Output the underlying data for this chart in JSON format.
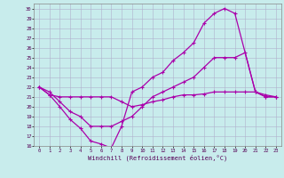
{
  "xlabel": "Windchill (Refroidissement éolien,°C)",
  "bg_color": "#c8ecec",
  "grid_color": "#b0b0cc",
  "line_color": "#aa00aa",
  "xlim": [
    -0.5,
    23.5
  ],
  "ylim": [
    16,
    30.5
  ],
  "yticks": [
    16,
    17,
    18,
    19,
    20,
    21,
    22,
    23,
    24,
    25,
    26,
    27,
    28,
    29,
    30
  ],
  "xticks": [
    0,
    1,
    2,
    3,
    4,
    5,
    6,
    7,
    8,
    9,
    10,
    11,
    12,
    13,
    14,
    15,
    16,
    17,
    18,
    19,
    20,
    21,
    22,
    23
  ],
  "line1_x": [
    0,
    1,
    2,
    3,
    4,
    5,
    6,
    7,
    8,
    9,
    10,
    11,
    12,
    13,
    14,
    15,
    16,
    17,
    18,
    19,
    21,
    22,
    23
  ],
  "line1_y": [
    22,
    21.2,
    20.0,
    18.7,
    17.8,
    16.5,
    16.2,
    15.8,
    18.0,
    21.5,
    22.0,
    23.0,
    23.5,
    24.7,
    25.5,
    26.5,
    28.5,
    29.5,
    30.0,
    29.5,
    21.5,
    21.0,
    21.0
  ],
  "line2_x": [
    0,
    1,
    2,
    3,
    4,
    5,
    6,
    7,
    8,
    9,
    10,
    11,
    12,
    13,
    14,
    15,
    16,
    17,
    18,
    19,
    20,
    21,
    22,
    23
  ],
  "line2_y": [
    22,
    21.5,
    20.5,
    19.5,
    19.0,
    18.0,
    18.0,
    18.0,
    18.5,
    19.0,
    20.0,
    21.0,
    21.5,
    22.0,
    22.5,
    23.0,
    24.0,
    25.0,
    25.0,
    25.0,
    25.5,
    21.5,
    21.0,
    21.0
  ],
  "line3_x": [
    0,
    1,
    2,
    3,
    4,
    5,
    6,
    7,
    8,
    9,
    10,
    11,
    12,
    13,
    14,
    15,
    16,
    17,
    18,
    19,
    20,
    21,
    22,
    23
  ],
  "line3_y": [
    22,
    21.2,
    21.0,
    21.0,
    21.0,
    21.0,
    21.0,
    21.0,
    20.5,
    20.0,
    20.2,
    20.5,
    20.7,
    21.0,
    21.2,
    21.2,
    21.3,
    21.5,
    21.5,
    21.5,
    21.5,
    21.5,
    21.2,
    21.0
  ]
}
